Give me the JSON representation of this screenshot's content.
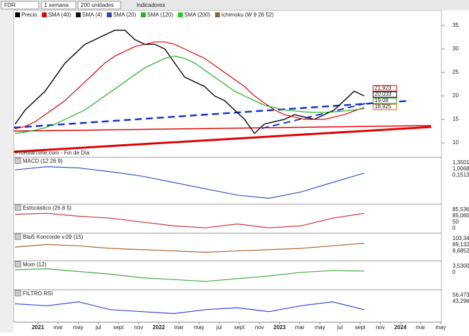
{
  "toolbar": {
    "symbol": "FDR",
    "period": "1 semana",
    "units": "200 unidades",
    "indicators": "Indicadores"
  },
  "main": {
    "legend": [
      "Precio",
      "SMA (40)",
      "SMA (4)",
      "SMA (20)",
      "SMA (120)",
      "SMA (200)",
      "Ichimoku (W 9 26 52)"
    ],
    "ylim": [
      7.5,
      38
    ],
    "yticks": [
      35,
      30,
      25,
      20,
      15,
      10
    ],
    "price_labels": [
      "21,923",
      "20,033",
      "19,08",
      "18,925"
    ],
    "watermark": "ProRealTime.com - Fin de Día",
    "series": [
      {
        "color": "#111111",
        "values": [
          14,
          17,
          19,
          21,
          24,
          27,
          29,
          31,
          32,
          33,
          34,
          34,
          32,
          31,
          31,
          30,
          27,
          24,
          23,
          22,
          20,
          19,
          17,
          15,
          12,
          14,
          14.5,
          15,
          16,
          15.5,
          15,
          16,
          17,
          19,
          21,
          20
        ]
      },
      {
        "color": "#e00000",
        "values": [
          13,
          13.5,
          14.5,
          16,
          17.5,
          19,
          21,
          23,
          25,
          27,
          28.5,
          29.5,
          30.5,
          31,
          31.5,
          31.5,
          31,
          30,
          29,
          28,
          26.5,
          25,
          23.5,
          22,
          20,
          18.5,
          17,
          16,
          15.5,
          15,
          15,
          15,
          15.5,
          16,
          16.8,
          17.5
        ]
      },
      {
        "color": "#22aa22",
        "values": [
          12,
          12.3,
          12.7,
          13.2,
          14,
          15,
          16,
          17,
          18.5,
          20,
          21.5,
          23,
          24.5,
          26,
          27,
          28,
          28.5,
          28,
          27,
          25.5,
          24,
          22.5,
          21,
          20,
          19,
          18,
          17.5,
          17,
          16.8,
          16.6,
          16.5,
          16.5,
          16.6,
          16.8,
          17,
          17.3
        ]
      }
    ]
  },
  "panels": [
    {
      "title": "MACD (12 26 9)",
      "labels": [
        "1,3501",
        "1,0068",
        "0,1513"
      ],
      "ylim": [
        -3.5,
        2.5
      ],
      "color": "#3355cc",
      "values": [
        1.5,
        2,
        1.8,
        1.2,
        0.5,
        -0.5,
        -1.5,
        -2.5,
        -3,
        -2,
        -0.5,
        1
      ]
    },
    {
      "title": "Estocástico (26 8 5)",
      "labels": [
        "85,536",
        "85,065",
        "50",
        "0"
      ],
      "ylim": [
        0,
        100
      ],
      "color": "#cc3333",
      "values": [
        80,
        85,
        70,
        60,
        40,
        20,
        10,
        30,
        10,
        20,
        60,
        85
      ]
    },
    {
      "title": "Blai5 Koncorde v.09 (15)",
      "labels": [
        "103,34",
        "89,132",
        "9,6852"
      ],
      "ylim": [
        -20,
        120
      ],
      "color": "#aa6633",
      "values": [
        60,
        80,
        70,
        50,
        40,
        30,
        20,
        30,
        40,
        50,
        70,
        90
      ]
    },
    {
      "title": "Mom (12)",
      "labels": [
        "3,5300",
        "0"
      ],
      "ylim": [
        -12,
        8
      ],
      "color": "#44aa44",
      "values": [
        5,
        6,
        3,
        0,
        -4,
        -6,
        -8,
        -5,
        -2,
        2,
        4,
        3.5
      ]
    },
    {
      "title": "FILTRO RSI",
      "labels": [
        "56,473",
        "43,296"
      ],
      "ylim": [
        20,
        80
      ],
      "color": "#3344dd",
      "values": [
        60,
        55,
        65,
        45,
        40,
        35,
        45,
        50,
        40,
        55,
        65,
        45
      ]
    }
  ],
  "x_labels": [
    "2021",
    "mar",
    "may",
    "jul",
    "sept",
    "nov",
    "2022",
    "mar",
    "may",
    "jul",
    "sept",
    "nov",
    "2023",
    "mar",
    "may",
    "jul",
    "sept",
    "nov",
    "2024",
    "mar",
    "may"
  ]
}
